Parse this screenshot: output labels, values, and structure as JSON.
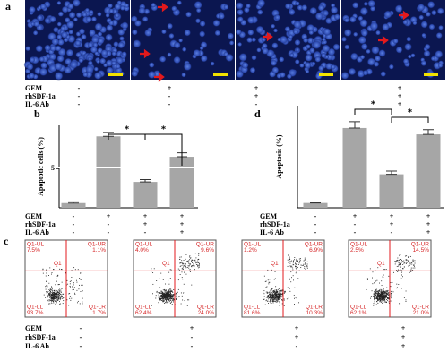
{
  "labels": [
    "a",
    "b",
    "c",
    "d"
  ],
  "treatments": {
    "names": [
      "GEM",
      "rhSDF-1a",
      "IL-6 Ab"
    ],
    "signs": [
      [
        "-",
        "-",
        "-"
      ],
      [
        "+",
        "-",
        "-"
      ],
      [
        "+",
        "+",
        "-"
      ],
      [
        "+",
        "+",
        "+"
      ]
    ]
  },
  "chart_data": [
    {
      "type": "bar",
      "y_label": "Apoptotic cells (%)",
      "values": [
        0.6,
        9.1,
        3.3,
        6.5
      ],
      "errors": [
        0.15,
        0.5,
        0.3,
        0.5
      ],
      "color": "#a6a6a6",
      "ylim": [
        0,
        10.5
      ],
      "yticks": [
        5
      ],
      "annotations": [
        "*",
        "*"
      ]
    },
    {
      "type": "bar",
      "y_label": "Apoptosis (%)",
      "values": [
        1.5,
        25,
        10.5,
        23
      ],
      "errors": [
        0.3,
        2,
        1,
        1.5
      ],
      "color": "#a6a6a6",
      "ylim": [
        0,
        32
      ],
      "annotations": [
        "*",
        "*"
      ]
    }
  ],
  "flow": {
    "gate_name": "Q1",
    "gates": [
      "Q1-UL",
      "Q1-UR",
      "Q1-LL",
      "Q1-LR"
    ],
    "plots": [
      [
        "7.5%",
        "1.1%",
        "93.7%",
        "1.7%"
      ],
      [
        "4.0%",
        "9.6%",
        "62.4%",
        "24.0%"
      ],
      [
        "1.2%",
        "6.9%",
        "81.6%",
        "10.3%"
      ],
      [
        "2.5%",
        "14.5%",
        "62.1%",
        "21.0%"
      ]
    ]
  }
}
